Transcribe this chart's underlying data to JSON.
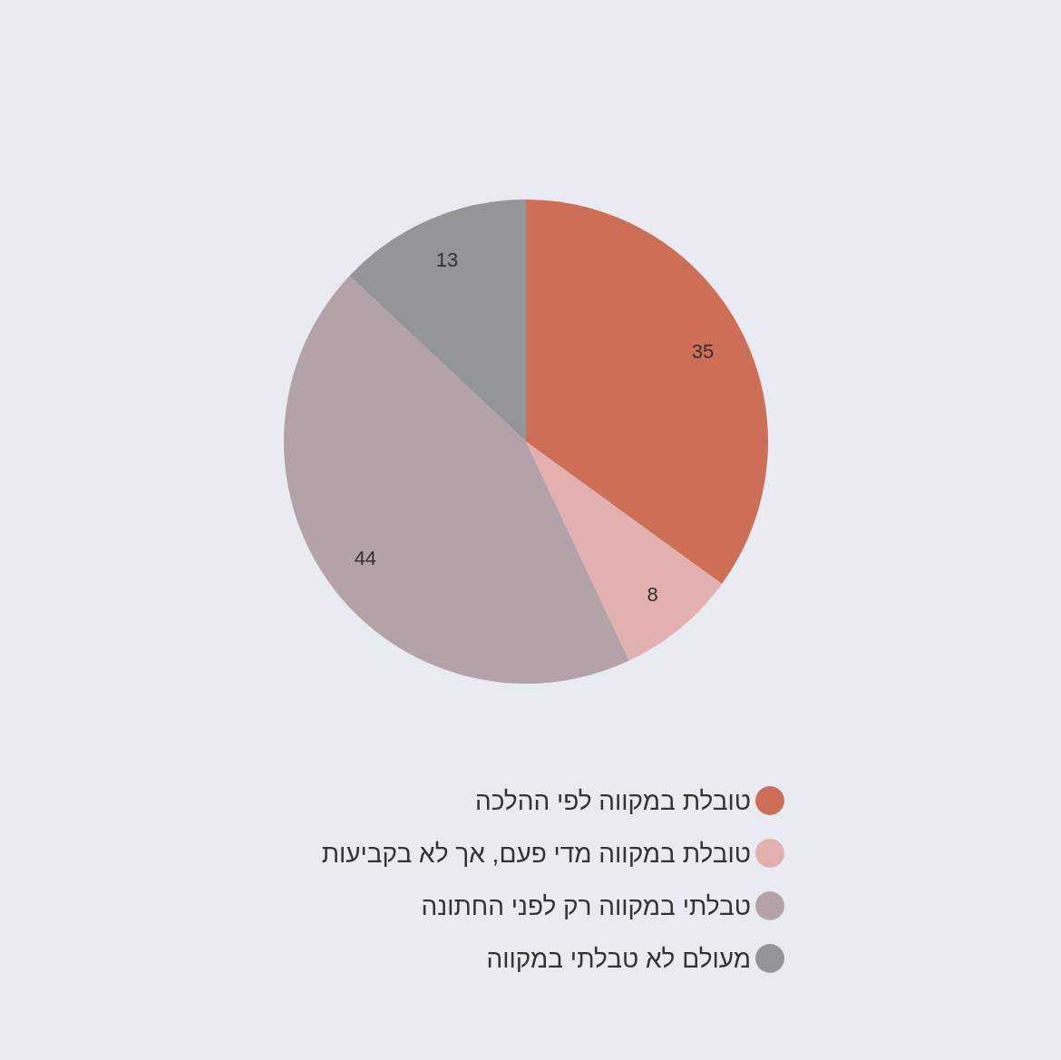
{
  "chart_data": {
    "type": "pie",
    "categories": [
      "טובלת במקווה לפי ההלכה",
      "טובלת במקווה מדי פעם, אך לא בקביעות",
      "טבלתי במקווה רק לפני החתונה",
      "מעולם לא טבלתי במקווה"
    ],
    "values": [
      35,
      8,
      44,
      13
    ],
    "colors": [
      "#cd6e57",
      "#e2b0ae",
      "#b3a2a7",
      "#939598"
    ],
    "data_labels": true,
    "legend": "bottom"
  }
}
